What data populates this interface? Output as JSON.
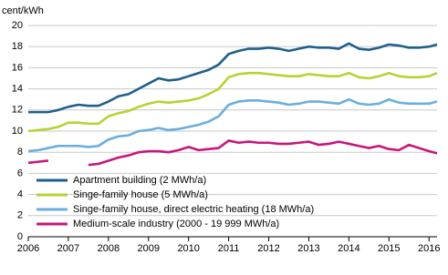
{
  "chart_data": {
    "type": "line",
    "y_label": "cent/kWh",
    "x": [
      2006,
      2006.25,
      2006.5,
      2006.75,
      2007,
      2007.25,
      2007.5,
      2007.75,
      2008,
      2008.25,
      2008.5,
      2008.75,
      2009,
      2009.25,
      2009.5,
      2009.75,
      2010,
      2010.25,
      2010.5,
      2010.75,
      2011,
      2011.25,
      2011.5,
      2011.75,
      2012,
      2012.25,
      2012.5,
      2012.75,
      2013,
      2013.25,
      2013.5,
      2013.75,
      2014,
      2014.25,
      2014.5,
      2014.75,
      2015,
      2015.25,
      2015.5,
      2015.75,
      2016,
      2016.2
    ],
    "series": [
      {
        "name": "Apartment building (2 MWh/a)",
        "color": "#1f5f8b",
        "values": [
          11.8,
          11.8,
          11.8,
          12.0,
          12.3,
          12.5,
          12.4,
          12.4,
          12.8,
          13.3,
          13.5,
          14.0,
          14.5,
          15.0,
          14.8,
          14.9,
          15.2,
          15.5,
          15.8,
          16.3,
          17.3,
          17.6,
          17.8,
          17.8,
          17.9,
          17.8,
          17.6,
          17.8,
          18.0,
          17.9,
          17.9,
          17.8,
          18.3,
          17.8,
          17.7,
          17.9,
          18.2,
          18.1,
          17.9,
          17.9,
          18.0,
          18.2
        ]
      },
      {
        "name": "Singe-family house (5 MWh/a)",
        "color": "#b5d334",
        "values": [
          10.0,
          10.1,
          10.2,
          10.4,
          10.8,
          10.8,
          10.7,
          10.7,
          11.4,
          11.7,
          11.9,
          12.3,
          12.6,
          12.8,
          12.7,
          12.8,
          12.9,
          13.1,
          13.5,
          14.0,
          15.1,
          15.4,
          15.5,
          15.5,
          15.4,
          15.3,
          15.2,
          15.2,
          15.4,
          15.3,
          15.2,
          15.2,
          15.5,
          15.1,
          15.0,
          15.2,
          15.5,
          15.2,
          15.1,
          15.1,
          15.2,
          15.5
        ]
      },
      {
        "name": "Singe-family house, direct electric heating (18 MWh/a)",
        "color": "#6aaee0",
        "values": [
          8.1,
          8.2,
          8.4,
          8.6,
          8.6,
          8.6,
          8.5,
          8.6,
          9.2,
          9.5,
          9.6,
          10.0,
          10.1,
          10.3,
          10.1,
          10.2,
          10.4,
          10.6,
          10.9,
          11.4,
          12.5,
          12.8,
          12.9,
          12.9,
          12.8,
          12.7,
          12.5,
          12.6,
          12.8,
          12.8,
          12.7,
          12.6,
          13.0,
          12.6,
          12.5,
          12.6,
          13.0,
          12.7,
          12.6,
          12.6,
          12.6,
          12.8
        ]
      },
      {
        "name": "Medium-scale industry (2000 - 19 999 MWh/a)",
        "color": "#c7177c",
        "values": [
          7.0,
          7.1,
          7.2,
          null,
          null,
          null,
          6.8,
          6.9,
          7.2,
          7.5,
          7.7,
          8.0,
          8.1,
          8.1,
          8.0,
          8.2,
          8.5,
          8.2,
          8.3,
          8.4,
          9.1,
          8.9,
          9.0,
          8.9,
          8.9,
          8.8,
          8.8,
          8.9,
          9.0,
          8.7,
          8.8,
          9.0,
          8.8,
          8.6,
          8.4,
          8.6,
          8.3,
          8.2,
          8.7,
          8.4,
          8.1,
          7.9
        ]
      }
    ],
    "xlim": [
      2006,
      2016.2
    ],
    "xticks": [
      2006,
      2007,
      2008,
      2009,
      2010,
      2011,
      2012,
      2013,
      2014,
      2015,
      2016
    ],
    "ylim": [
      0,
      20
    ],
    "yticks": [
      0,
      2,
      4,
      6,
      8,
      10,
      12,
      14,
      16,
      18,
      20
    ],
    "grid": true,
    "legend": "lower-left"
  }
}
